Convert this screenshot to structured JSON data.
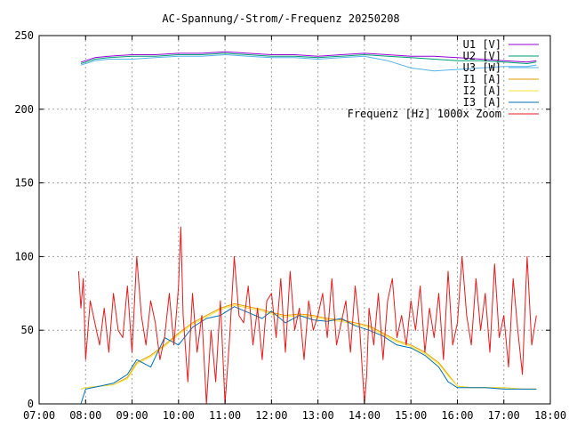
{
  "chart_data": {
    "type": "line",
    "title": "AC-Spannung/-Strom/-Frequenz 20250208",
    "xlabel": "",
    "ylabel": "",
    "xlim": [
      7,
      18
    ],
    "ylim": [
      0,
      250
    ],
    "x_ticks": [
      "07:00",
      "08:00",
      "09:00",
      "10:00",
      "11:00",
      "12:00",
      "13:00",
      "14:00",
      "15:00",
      "16:00",
      "17:00",
      "18:00"
    ],
    "y_ticks": [
      "0",
      "50",
      "100",
      "150",
      "200",
      "250"
    ],
    "grid": true,
    "legend_position": "top-right",
    "series": [
      {
        "name": "U1 [V]",
        "color": "#9400d3",
        "x": [
          7.9,
          8.0,
          8.2,
          8.5,
          9.0,
          9.5,
          10.0,
          10.5,
          11.0,
          11.5,
          12.0,
          12.5,
          13.0,
          13.5,
          14.0,
          14.5,
          15.0,
          15.5,
          16.0,
          16.5,
          17.0,
          17.5,
          17.7
        ],
        "y": [
          232,
          233,
          235,
          236,
          237,
          237,
          238,
          238,
          239,
          238,
          237,
          237,
          236,
          237,
          238,
          237,
          236,
          236,
          235,
          234,
          233,
          232,
          233
        ]
      },
      {
        "name": "U2 [V]",
        "color": "#009e73",
        "x": [
          7.9,
          8.0,
          8.2,
          8.5,
          9.0,
          9.5,
          10.0,
          10.5,
          11.0,
          11.5,
          12.0,
          12.5,
          13.0,
          13.5,
          14.0,
          14.5,
          15.0,
          15.5,
          16.0,
          16.5,
          17.0,
          17.5,
          17.7
        ],
        "y": [
          231,
          232,
          234,
          235,
          236,
          236,
          237,
          237,
          238,
          237,
          236,
          236,
          235,
          236,
          237,
          236,
          235,
          234,
          233,
          233,
          232,
          231,
          232
        ]
      },
      {
        "name": "U3 [W]",
        "color": "#56b4e9",
        "x": [
          7.9,
          8.0,
          8.2,
          8.5,
          9.0,
          9.5,
          10.0,
          10.5,
          11.0,
          11.5,
          12.0,
          12.5,
          13.0,
          13.5,
          14.0,
          14.5,
          15.0,
          15.5,
          16.0,
          16.5,
          17.0,
          17.5,
          17.7
        ],
        "y": [
          230,
          231,
          233,
          234,
          234,
          235,
          236,
          236,
          237,
          236,
          235,
          235,
          234,
          235,
          236,
          233,
          228,
          226,
          227,
          228,
          229,
          229,
          230
        ]
      },
      {
        "name": "I1 [A]",
        "color": "#e69f00",
        "x": [
          7.9,
          8.0,
          8.3,
          8.6,
          8.9,
          9.1,
          9.4,
          9.7,
          10.0,
          10.3,
          10.6,
          10.9,
          11.2,
          11.5,
          11.8,
          12.0,
          12.3,
          12.6,
          12.9,
          13.2,
          13.5,
          13.8,
          14.1,
          14.4,
          14.7,
          15.0,
          15.3,
          15.6,
          15.8,
          16.0,
          16.3,
          16.6,
          17.0,
          17.4,
          17.7
        ],
        "y": [
          10,
          11,
          12,
          13,
          18,
          28,
          33,
          40,
          48,
          55,
          60,
          65,
          68,
          66,
          64,
          62,
          60,
          61,
          60,
          58,
          57,
          55,
          53,
          48,
          43,
          40,
          35,
          28,
          20,
          12,
          11,
          11,
          11,
          10,
          10
        ]
      },
      {
        "name": "I2 [A]",
        "color": "#f0e442",
        "x": [
          7.9,
          8.0,
          8.3,
          8.6,
          8.9,
          9.1,
          9.4,
          9.7,
          10.0,
          10.3,
          10.6,
          10.9,
          11.2,
          11.5,
          11.8,
          12.0,
          12.3,
          12.6,
          12.9,
          13.2,
          13.5,
          13.8,
          14.1,
          14.4,
          14.7,
          15.0,
          15.3,
          15.6,
          15.8,
          16.0,
          16.3,
          16.6,
          17.0,
          17.4,
          17.7
        ],
        "y": [
          10,
          11,
          12,
          13,
          17,
          27,
          32,
          39,
          47,
          54,
          59,
          64,
          67,
          65,
          63,
          61,
          59,
          60,
          59,
          57,
          56,
          54,
          52,
          47,
          42,
          39,
          34,
          27,
          19,
          12,
          11,
          11,
          11,
          10,
          10
        ]
      },
      {
        "name": "I3 [A]",
        "color": "#0072b2",
        "x": [
          7.9,
          8.0,
          8.3,
          8.6,
          8.9,
          9.1,
          9.4,
          9.7,
          10.0,
          10.3,
          10.6,
          10.9,
          11.2,
          11.5,
          11.8,
          12.0,
          12.3,
          12.6,
          12.9,
          13.2,
          13.5,
          13.8,
          14.1,
          14.4,
          14.7,
          15.0,
          15.3,
          15.6,
          15.8,
          16.0,
          16.3,
          16.6,
          17.0,
          17.4,
          17.7
        ],
        "y": [
          0,
          10,
          12,
          14,
          20,
          30,
          25,
          45,
          40,
          52,
          58,
          60,
          66,
          62,
          58,
          63,
          55,
          60,
          57,
          56,
          58,
          53,
          50,
          46,
          40,
          38,
          33,
          25,
          15,
          11,
          11,
          11,
          10,
          10,
          10
        ]
      },
      {
        "name": "Frequenz [Hz] 1000x Zoom",
        "color": "#e41a1c",
        "x": [
          7.85,
          7.9,
          7.95,
          8.0,
          8.1,
          8.2,
          8.3,
          8.4,
          8.5,
          8.6,
          8.7,
          8.8,
          8.9,
          9.0,
          9.1,
          9.2,
          9.3,
          9.4,
          9.5,
          9.6,
          9.7,
          9.8,
          9.9,
          10.0,
          10.05,
          10.1,
          10.2,
          10.3,
          10.4,
          10.5,
          10.6,
          10.7,
          10.8,
          10.9,
          11.0,
          11.1,
          11.2,
          11.3,
          11.4,
          11.5,
          11.6,
          11.7,
          11.8,
          11.9,
          12.0,
          12.1,
          12.2,
          12.3,
          12.4,
          12.5,
          12.6,
          12.7,
          12.8,
          12.9,
          13.0,
          13.1,
          13.2,
          13.3,
          13.4,
          13.5,
          13.6,
          13.7,
          13.8,
          13.9,
          14.0,
          14.05,
          14.1,
          14.2,
          14.3,
          14.4,
          14.5,
          14.6,
          14.7,
          14.8,
          14.9,
          15.0,
          15.1,
          15.2,
          15.3,
          15.4,
          15.5,
          15.6,
          15.7,
          15.8,
          15.9,
          16.0,
          16.1,
          16.2,
          16.3,
          16.4,
          16.5,
          16.6,
          16.7,
          16.8,
          16.9,
          17.0,
          17.1,
          17.2,
          17.3,
          17.4,
          17.5,
          17.6,
          17.7
        ],
        "y": [
          90,
          65,
          85,
          30,
          70,
          55,
          40,
          65,
          35,
          75,
          50,
          45,
          80,
          35,
          100,
          60,
          40,
          70,
          55,
          30,
          45,
          75,
          40,
          80,
          120,
          60,
          15,
          75,
          35,
          60,
          0,
          50,
          15,
          70,
          0,
          45,
          100,
          60,
          55,
          80,
          40,
          65,
          30,
          70,
          75,
          45,
          85,
          35,
          90,
          50,
          65,
          30,
          70,
          50,
          60,
          75,
          45,
          85,
          40,
          55,
          70,
          35,
          80,
          50,
          0,
          20,
          65,
          40,
          75,
          30,
          70,
          85,
          45,
          60,
          40,
          70,
          50,
          80,
          35,
          65,
          45,
          75,
          30,
          90,
          40,
          55,
          100,
          60,
          40,
          85,
          50,
          75,
          35,
          95,
          45,
          60,
          25,
          85,
          50,
          20,
          100,
          40,
          60
        ]
      }
    ]
  }
}
